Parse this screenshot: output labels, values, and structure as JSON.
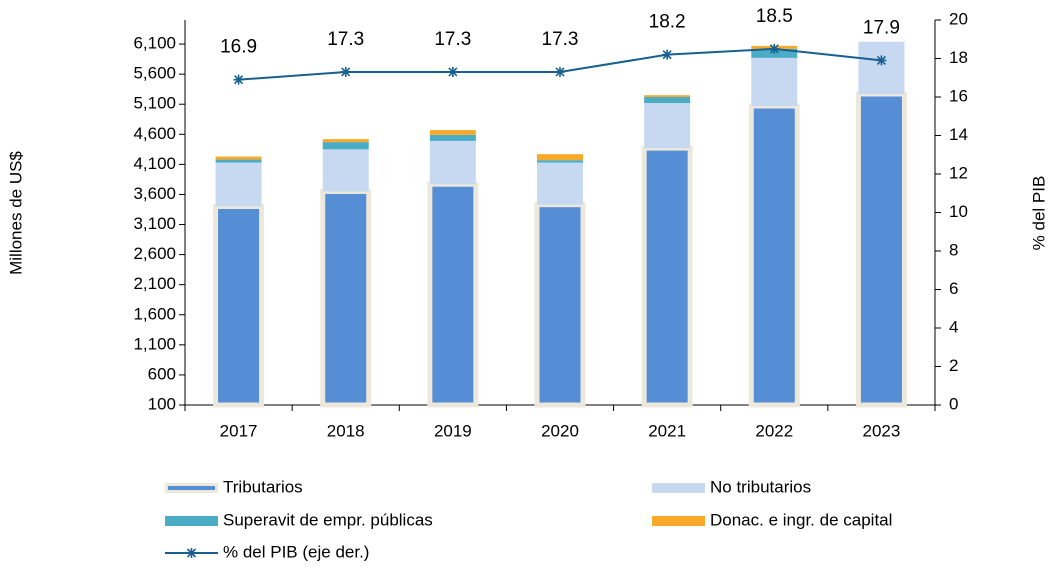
{
  "chart_data": {
    "type": "bar",
    "categories": [
      "2017",
      "2018",
      "2019",
      "2020",
      "2021",
      "2022",
      "2023"
    ],
    "series": [
      {
        "name": "Tributarios",
        "color": "#558ed5",
        "values": [
          3400,
          3650,
          3770,
          3430,
          4370,
          5070,
          5270
        ]
      },
      {
        "name": "No tributarios",
        "color": "#c6d9f1",
        "values": [
          730,
          700,
          720,
          700,
          750,
          800,
          870
        ]
      },
      {
        "name": "Superavit de empr. públicas",
        "color": "#4bacc6",
        "values": [
          50,
          120,
          100,
          40,
          100,
          150,
          0
        ]
      },
      {
        "name": "Donac. e ingr. de capital",
        "color": "#f8a92a",
        "values": [
          50,
          50,
          80,
          100,
          30,
          50,
          0
        ]
      },
      {
        "name": "% del PIB (eje der.)",
        "color": "#17608f",
        "type": "line",
        "axis": "y2",
        "values": [
          16.9,
          17.3,
          17.3,
          17.3,
          18.2,
          18.5,
          17.9
        ]
      }
    ],
    "ylabel": "Millones de US$",
    "y2label": "% del PIB",
    "ylim": [
      100,
      6500
    ],
    "yticks": [
      100,
      600,
      {
        "value": 1100,
        "label": "1,100"
      },
      {
        "value": 1600,
        "label": "1,600"
      },
      {
        "value": 2100,
        "label": "2,100"
      },
      {
        "value": 2600,
        "label": "2,600"
      },
      {
        "value": 3100,
        "label": "3,100"
      },
      {
        "value": 3600,
        "label": "3,600"
      },
      {
        "value": 4100,
        "label": "4,100"
      },
      {
        "value": 4600,
        "label": "4,600"
      },
      {
        "value": 5100,
        "label": "5,100"
      },
      {
        "value": 5600,
        "label": "5,600"
      },
      {
        "value": 6100,
        "label": "6,100"
      }
    ],
    "y2lim": [
      0,
      20
    ],
    "y2ticks": [
      0,
      2,
      4,
      6,
      8,
      10,
      12,
      14,
      16,
      18,
      20
    ],
    "grid": false
  }
}
